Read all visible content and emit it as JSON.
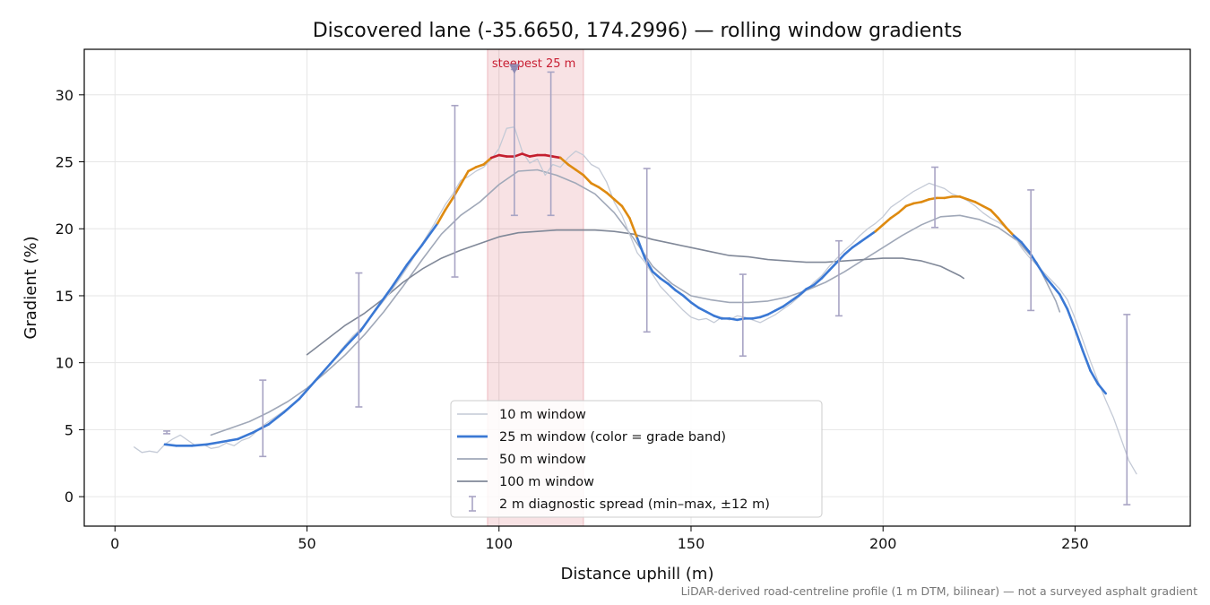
{
  "chart_data": {
    "type": "line",
    "title": "Discovered lane (-35.6650, 174.2996) — rolling window gradients",
    "xlabel": "Distance uphill (m)",
    "ylabel": "Gradient (%)",
    "xlim": [
      -8,
      280
    ],
    "ylim": [
      -2.2,
      33.4
    ],
    "xticks": [
      0,
      50,
      100,
      150,
      200,
      250
    ],
    "yticks": [
      0,
      5,
      10,
      15,
      20,
      25,
      30
    ],
    "grid": true,
    "legend_position": "bottom-center",
    "footnote": "LiDAR-derived road-centreline profile (1 m DTM, bilinear) — not a surveyed asphalt gradient",
    "highlight": {
      "label": "steepest 25 m",
      "x_range": [
        97,
        122
      ],
      "marker_x": 104,
      "marker_y": 31.9,
      "color": "#c81e32"
    },
    "colors": {
      "band_low": "#3a78d4",
      "band_mid": "#de8a10",
      "band_high": "#c41e2e"
    },
    "grade_bands": {
      "mid_from": 19.8,
      "high_from": 25.2
    },
    "series": [
      {
        "name": "10 m window",
        "color": "#c4cad6",
        "width": 1.3,
        "x": [
          5,
          7,
          9,
          11,
          13,
          15,
          17,
          19,
          21,
          23,
          25,
          27,
          29,
          31,
          33,
          35,
          37,
          39,
          41,
          43,
          45,
          47,
          50,
          53,
          56,
          59,
          62,
          65,
          68,
          71,
          74,
          77,
          80,
          83,
          86,
          88,
          90,
          92,
          94,
          96,
          98,
          100,
          102,
          104,
          106,
          108,
          110,
          112,
          114,
          116,
          118,
          120,
          122,
          124,
          126,
          128,
          130,
          132,
          134,
          136,
          138,
          140,
          142,
          144,
          146,
          148,
          150,
          152,
          154,
          156,
          158,
          160,
          162,
          164,
          166,
          168,
          170,
          172,
          174,
          176,
          178,
          180,
          182,
          184,
          186,
          188,
          190,
          192,
          194,
          196,
          198,
          200,
          202,
          204,
          206,
          208,
          210,
          212,
          214,
          216,
          218,
          220,
          222,
          224,
          226,
          228,
          230,
          232,
          234,
          236,
          238,
          240,
          242,
          244,
          246,
          248,
          250,
          252,
          254,
          256,
          258,
          260,
          262,
          264,
          266
        ],
        "y": [
          3.7,
          3.3,
          3.4,
          3.3,
          3.9,
          4.3,
          4.6,
          4.2,
          3.8,
          3.9,
          3.6,
          3.7,
          4.0,
          3.8,
          4.2,
          4.4,
          4.9,
          5.4,
          5.8,
          6.2,
          6.6,
          7.0,
          7.9,
          8.9,
          9.9,
          11.0,
          12.0,
          12.8,
          13.9,
          15.0,
          16.2,
          17.5,
          18.9,
          20.3,
          21.8,
          22.6,
          23.6,
          23.9,
          24.3,
          24.6,
          25.2,
          26.0,
          27.5,
          27.6,
          25.8,
          24.9,
          25.2,
          24.0,
          24.8,
          24.6,
          25.3,
          25.8,
          25.5,
          24.8,
          24.5,
          23.5,
          22.0,
          21.0,
          19.6,
          18.2,
          17.5,
          16.6,
          15.7,
          15.1,
          14.5,
          13.9,
          13.4,
          13.2,
          13.3,
          13.0,
          13.4,
          13.2,
          13.5,
          13.4,
          13.2,
          13.0,
          13.3,
          13.6,
          14.0,
          14.4,
          14.9,
          15.4,
          16.0,
          16.5,
          17.2,
          17.8,
          18.4,
          18.9,
          19.5,
          20.0,
          20.4,
          20.9,
          21.6,
          22.0,
          22.4,
          22.8,
          23.1,
          23.4,
          23.2,
          23.0,
          22.6,
          22.4,
          22.1,
          21.7,
          21.2,
          20.8,
          20.5,
          20.1,
          19.5,
          18.6,
          17.9,
          17.3,
          16.7,
          16.1,
          15.5,
          14.7,
          13.3,
          11.7,
          10.1,
          8.6,
          7.2,
          5.9,
          4.3,
          2.7,
          1.7
        ]
      },
      {
        "name": "25 m window (color = grade band)",
        "color": "#3a78d4",
        "width": 2.6,
        "banded": true,
        "x": [
          13,
          16,
          20,
          24,
          28,
          32,
          36,
          40,
          44,
          48,
          52,
          56,
          60,
          64,
          68,
          72,
          76,
          80,
          84,
          86,
          88,
          90,
          92,
          94,
          96,
          98,
          100,
          102,
          104,
          106,
          108,
          110,
          112,
          114,
          116,
          118,
          120,
          122,
          124,
          126,
          128,
          130,
          132,
          134,
          136,
          138,
          140,
          142,
          144,
          146,
          148,
          150,
          152,
          154,
          156,
          158,
          160,
          162,
          164,
          166,
          168,
          170,
          172,
          174,
          176,
          178,
          180,
          182,
          184,
          186,
          188,
          190,
          192,
          194,
          196,
          198,
          200,
          202,
          204,
          206,
          208,
          210,
          212,
          214,
          216,
          218,
          220,
          222,
          224,
          226,
          228,
          230,
          232,
          234,
          236,
          238,
          240,
          242,
          244,
          246,
          248,
          250,
          252,
          254,
          256,
          258
        ],
        "y": [
          3.9,
          3.8,
          3.8,
          3.9,
          4.1,
          4.3,
          4.8,
          5.4,
          6.3,
          7.3,
          8.6,
          9.9,
          11.2,
          12.4,
          14.0,
          15.6,
          17.3,
          18.8,
          20.4,
          21.4,
          22.3,
          23.3,
          24.3,
          24.6,
          24.8,
          25.3,
          25.5,
          25.4,
          25.4,
          25.6,
          25.4,
          25.5,
          25.5,
          25.4,
          25.3,
          24.8,
          24.4,
          24.0,
          23.4,
          23.1,
          22.7,
          22.2,
          21.7,
          20.8,
          19.3,
          17.8,
          16.8,
          16.3,
          15.9,
          15.4,
          15.0,
          14.5,
          14.1,
          13.8,
          13.5,
          13.3,
          13.3,
          13.2,
          13.3,
          13.3,
          13.4,
          13.6,
          13.9,
          14.2,
          14.6,
          15.0,
          15.5,
          15.8,
          16.3,
          16.9,
          17.5,
          18.1,
          18.6,
          19.0,
          19.4,
          19.8,
          20.3,
          20.8,
          21.2,
          21.7,
          21.9,
          22.0,
          22.2,
          22.3,
          22.3,
          22.4,
          22.4,
          22.2,
          22.0,
          21.7,
          21.4,
          20.8,
          20.1,
          19.5,
          19.0,
          18.3,
          17.4,
          16.5,
          15.8,
          15.1,
          14.0,
          12.5,
          10.9,
          9.4,
          8.4,
          7.7
        ]
      },
      {
        "name": "50 m window",
        "color": "#a0a8b8",
        "width": 1.6,
        "x": [
          25,
          30,
          35,
          40,
          45,
          50,
          55,
          60,
          65,
          70,
          75,
          80,
          85,
          90,
          95,
          100,
          105,
          110,
          115,
          120,
          125,
          130,
          135,
          140,
          145,
          150,
          155,
          160,
          165,
          170,
          175,
          180,
          185,
          190,
          195,
          200,
          205,
          210,
          215,
          220,
          225,
          230,
          235,
          240,
          245,
          246
        ],
        "y": [
          4.6,
          5.1,
          5.6,
          6.3,
          7.1,
          8.1,
          9.3,
          10.6,
          12.1,
          13.8,
          15.7,
          17.7,
          19.6,
          21.0,
          22.0,
          23.3,
          24.3,
          24.4,
          24.0,
          23.4,
          22.6,
          21.2,
          19.3,
          17.2,
          15.9,
          15.0,
          14.7,
          14.5,
          14.5,
          14.6,
          14.9,
          15.4,
          16.0,
          16.8,
          17.7,
          18.6,
          19.5,
          20.3,
          20.9,
          21.0,
          20.7,
          20.1,
          19.1,
          17.5,
          14.6,
          13.8
        ]
      },
      {
        "name": "100 m window",
        "color": "#808898",
        "width": 1.6,
        "x": [
          50,
          55,
          60,
          65,
          70,
          75,
          80,
          85,
          90,
          95,
          100,
          105,
          110,
          115,
          120,
          125,
          130,
          135,
          140,
          145,
          150,
          155,
          160,
          165,
          170,
          175,
          180,
          185,
          190,
          195,
          200,
          205,
          210,
          215,
          220,
          221
        ],
        "y": [
          10.6,
          11.7,
          12.8,
          13.7,
          14.8,
          16.0,
          17.0,
          17.8,
          18.4,
          18.9,
          19.4,
          19.7,
          19.8,
          19.9,
          19.9,
          19.9,
          19.8,
          19.6,
          19.2,
          18.9,
          18.6,
          18.3,
          18.0,
          17.9,
          17.7,
          17.6,
          17.5,
          17.5,
          17.6,
          17.7,
          17.8,
          17.8,
          17.6,
          17.2,
          16.5,
          16.3
        ]
      }
    ],
    "spread_series": {
      "name": "2 m diagnostic spread (min–max, ±12 m)",
      "color": "#a8a4c4",
      "bars": [
        {
          "x": 13.5,
          "low": 4.7,
          "high": 4.9
        },
        {
          "x": 38.5,
          "low": 3.0,
          "high": 8.7
        },
        {
          "x": 63.5,
          "low": 6.7,
          "high": 16.7
        },
        {
          "x": 88.5,
          "low": 16.4,
          "high": 29.2
        },
        {
          "x": 104,
          "low": 21.0,
          "high": 31.9
        },
        {
          "x": 113.5,
          "low": 21.0,
          "high": 31.7
        },
        {
          "x": 138.5,
          "low": 12.3,
          "high": 24.5
        },
        {
          "x": 163.5,
          "low": 10.5,
          "high": 16.6
        },
        {
          "x": 188.5,
          "low": 13.5,
          "high": 19.1
        },
        {
          "x": 213.5,
          "low": 20.1,
          "high": 24.6
        },
        {
          "x": 238.5,
          "low": 13.9,
          "high": 22.9
        },
        {
          "x": 263.5,
          "low": -0.6,
          "high": 13.6
        }
      ]
    }
  }
}
